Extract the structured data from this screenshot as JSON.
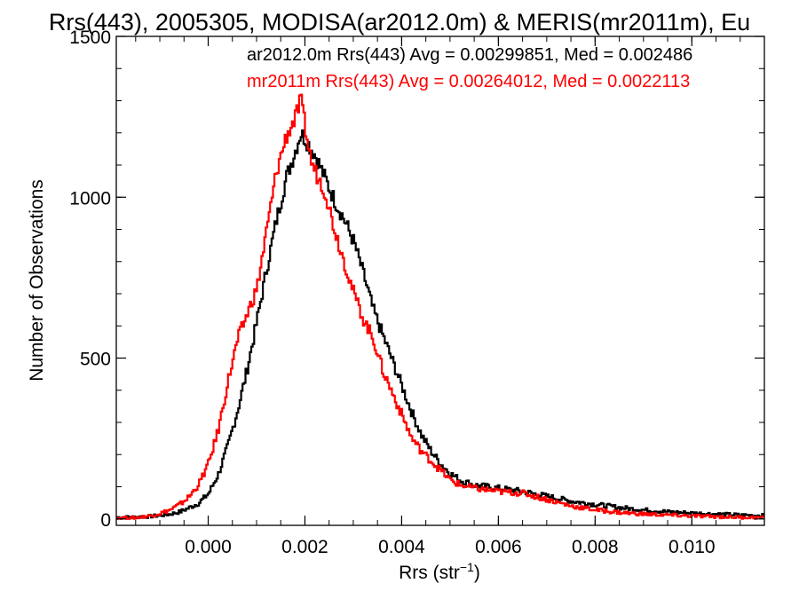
{
  "chart_data": {
    "type": "histogram-step",
    "title": "Rrs(443), 2005305, MODISA(ar2012.0m) & MERIS(mr2011m), Eu",
    "xlabel_base": "Rrs (str",
    "xlabel_sup": "−1",
    "xlabel_close": ")",
    "ylabel": "Number of Observations",
    "xlim": [
      -0.0019,
      0.0115
    ],
    "ylim": [
      -20,
      1500
    ],
    "x_ticks": [
      {
        "v": 0.0,
        "label": "0.000"
      },
      {
        "v": 0.002,
        "label": "0.002"
      },
      {
        "v": 0.004,
        "label": "0.004"
      },
      {
        "v": 0.006,
        "label": "0.006"
      },
      {
        "v": 0.008,
        "label": "0.008"
      },
      {
        "v": 0.01,
        "label": "0.010"
      }
    ],
    "y_ticks": [
      {
        "v": 0,
        "label": "0"
      },
      {
        "v": 500,
        "label": "500"
      },
      {
        "v": 1000,
        "label": "1000"
      },
      {
        "v": 1500,
        "label": "1500"
      }
    ],
    "x_minor_step": 0.0005,
    "y_minor_step": 100,
    "annotations": [
      {
        "text": "ar2012.0m Rrs(443) Avg = 0.00299851, Med = 0.002486",
        "color": "#000000"
      },
      {
        "text": "mr2011m Rrs(443) Avg = 0.00264012, Med = 0.0022113",
        "color": "#ff0000"
      }
    ],
    "series": [
      {
        "color": "#000000",
        "points": [
          [
            -0.0019,
            5
          ],
          [
            -0.0015,
            6
          ],
          [
            -0.0012,
            8
          ],
          [
            -0.001,
            11
          ],
          [
            -0.0008,
            15
          ],
          [
            -0.0006,
            22
          ],
          [
            -0.0004,
            35
          ],
          [
            -0.0002,
            50
          ],
          [
            0.0,
            80
          ],
          [
            0.0002,
            140
          ],
          [
            0.0004,
            230
          ],
          [
            0.0006,
            340
          ],
          [
            0.0008,
            470
          ],
          [
            0.001,
            620
          ],
          [
            0.0012,
            780
          ],
          [
            0.0014,
            930
          ],
          [
            0.0016,
            1060
          ],
          [
            0.0018,
            1150
          ],
          [
            0.0019,
            1200
          ],
          [
            0.002,
            1180
          ],
          [
            0.0022,
            1130
          ],
          [
            0.0024,
            1060
          ],
          [
            0.0026,
            990
          ],
          [
            0.0028,
            930
          ],
          [
            0.003,
            860
          ],
          [
            0.0032,
            760
          ],
          [
            0.0034,
            650
          ],
          [
            0.0036,
            570
          ],
          [
            0.0038,
            490
          ],
          [
            0.004,
            410
          ],
          [
            0.0042,
            330
          ],
          [
            0.0044,
            260
          ],
          [
            0.0046,
            210
          ],
          [
            0.0048,
            170
          ],
          [
            0.005,
            140
          ],
          [
            0.0052,
            120
          ],
          [
            0.0055,
            105
          ],
          [
            0.006,
            95
          ],
          [
            0.0065,
            85
          ],
          [
            0.007,
            70
          ],
          [
            0.0075,
            55
          ],
          [
            0.008,
            45
          ],
          [
            0.0085,
            35
          ],
          [
            0.009,
            28
          ],
          [
            0.0095,
            22
          ],
          [
            0.01,
            18
          ],
          [
            0.0105,
            15
          ],
          [
            0.011,
            12
          ],
          [
            0.0115,
            10
          ]
        ]
      },
      {
        "color": "#ff0000",
        "points": [
          [
            -0.0019,
            3
          ],
          [
            -0.0015,
            4
          ],
          [
            -0.0012,
            10
          ],
          [
            -0.001,
            18
          ],
          [
            -0.0008,
            28
          ],
          [
            -0.0006,
            45
          ],
          [
            -0.0004,
            70
          ],
          [
            -0.0002,
            110
          ],
          [
            0.0,
            175
          ],
          [
            0.0002,
            280
          ],
          [
            0.0004,
            430
          ],
          [
            0.0006,
            560
          ],
          [
            0.0008,
            640
          ],
          [
            0.001,
            720
          ],
          [
            0.0012,
            900
          ],
          [
            0.0014,
            1080
          ],
          [
            0.0016,
            1190
          ],
          [
            0.0017,
            1220
          ],
          [
            0.0018,
            1250
          ],
          [
            0.0019,
            1300
          ],
          [
            0.002,
            1210
          ],
          [
            0.0021,
            1120
          ],
          [
            0.0022,
            1080
          ],
          [
            0.0024,
            1020
          ],
          [
            0.0026,
            900
          ],
          [
            0.0028,
            800
          ],
          [
            0.003,
            700
          ],
          [
            0.0032,
            620
          ],
          [
            0.0034,
            560
          ],
          [
            0.0036,
            460
          ],
          [
            0.0038,
            390
          ],
          [
            0.004,
            320
          ],
          [
            0.0042,
            250
          ],
          [
            0.0044,
            210
          ],
          [
            0.0046,
            180
          ],
          [
            0.0048,
            150
          ],
          [
            0.005,
            120
          ],
          [
            0.0052,
            105
          ],
          [
            0.0055,
            95
          ],
          [
            0.006,
            85
          ],
          [
            0.0065,
            80
          ],
          [
            0.007,
            60
          ],
          [
            0.0075,
            40
          ],
          [
            0.008,
            28
          ],
          [
            0.0085,
            20
          ],
          [
            0.009,
            15
          ],
          [
            0.0095,
            12
          ],
          [
            0.01,
            9
          ],
          [
            0.0105,
            7
          ],
          [
            0.011,
            5
          ],
          [
            0.0115,
            4
          ]
        ]
      }
    ]
  }
}
